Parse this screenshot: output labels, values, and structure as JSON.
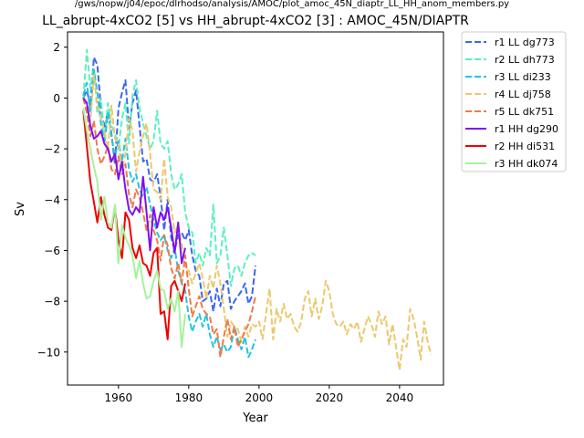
{
  "chart_data": {
    "type": "line",
    "suptitle": "/gws/nopw/j04/epoc/dlrhodso/analysis/AMOC/plot_amoc_45N_diaptr_LL_HH_anom_members.py",
    "title": "LL_abrupt-4xCO2 [5] vs HH_abrupt-4xCO2 [3] : AMOC_45N/DIAPTR",
    "xlabel": "Year",
    "ylabel": "Sv",
    "xlim": [
      1945.5,
      2052.5
    ],
    "ylim": [
      -11.3,
      2.6
    ],
    "xticks": [
      1960,
      1980,
      2000,
      2020,
      2040
    ],
    "yticks": [
      2,
      0,
      -2,
      -4,
      -6,
      -8,
      -10
    ],
    "grid": false,
    "legend_position": "outside-top-right",
    "series": [
      {
        "name": "r1 LL dg773",
        "color": "#3b67f0",
        "style": "dashed",
        "x": [
          1950,
          1951,
          1952,
          1953,
          1954,
          1955,
          1956,
          1957,
          1958,
          1959,
          1960,
          1961,
          1962,
          1963,
          1964,
          1965,
          1966,
          1967,
          1968,
          1969,
          1970,
          1971,
          1972,
          1973,
          1974,
          1975,
          1976,
          1977,
          1978,
          1979,
          1980,
          1981,
          1982,
          1983,
          1984,
          1985,
          1986,
          1987,
          1988,
          1989,
          1990,
          1991,
          1992,
          1993,
          1994,
          1995,
          1996,
          1997,
          1998,
          1999
        ],
        "y": [
          0.0,
          0.3,
          -0.3,
          1.6,
          1.3,
          -0.4,
          -1.2,
          -0.5,
          -1.4,
          -2.6,
          -0.4,
          0.2,
          0.7,
          -1.2,
          -0.2,
          0.3,
          -1.1,
          -2.5,
          -2.4,
          -3.2,
          -3.3,
          -3.0,
          -3.9,
          -5.2,
          -4.0,
          -5.5,
          -6.0,
          -5.4,
          -5.3,
          -5.6,
          -5.2,
          -6.2,
          -6.8,
          -7.0,
          -8.0,
          -7.9,
          -7.6,
          -8.4,
          -7.5,
          -8.2,
          -7.3,
          -7.2,
          -8.3,
          -8.0,
          -7.8,
          -7.6,
          -7.3,
          -8.1,
          -7.8,
          -6.6
        ]
      },
      {
        "name": "r2 LL dh773",
        "color": "#5cf0bf",
        "style": "dashed",
        "x": [
          1950,
          1951,
          1952,
          1953,
          1954,
          1955,
          1956,
          1957,
          1958,
          1959,
          1960,
          1961,
          1962,
          1963,
          1964,
          1965,
          1966,
          1967,
          1968,
          1969,
          1970,
          1971,
          1972,
          1973,
          1974,
          1975,
          1976,
          1977,
          1978,
          1979,
          1980,
          1981,
          1982,
          1983,
          1984,
          1985,
          1986,
          1987,
          1988,
          1989,
          1990,
          1991,
          1992,
          1993,
          1994,
          1995,
          1996,
          1997,
          1998,
          1999
        ],
        "y": [
          0.0,
          1.9,
          0.4,
          1.2,
          -0.6,
          0.0,
          -1.7,
          -0.2,
          -1.1,
          -1.4,
          -2.0,
          -0.8,
          -0.2,
          -1.8,
          0.1,
          0.7,
          -0.4,
          -1.0,
          -1.5,
          -2.0,
          -1.7,
          -0.5,
          -1.8,
          -2.0,
          -1.7,
          -3.0,
          -3.6,
          -3.4,
          -3.0,
          -4.5,
          -5.1,
          -5.3,
          -6.5,
          -6.1,
          -6.6,
          -5.9,
          -6.2,
          -4.2,
          -6.5,
          -6.2,
          -5.1,
          -6.2,
          -7.4,
          -6.7,
          -6.6,
          -7.0,
          -6.5,
          -6.2,
          -6.1,
          -6.2
        ]
      },
      {
        "name": "r3 LL di233",
        "color": "#22c5e0",
        "style": "dashed",
        "x": [
          1950,
          1951,
          1952,
          1953,
          1954,
          1955,
          1956,
          1957,
          1958,
          1959,
          1960,
          1961,
          1962,
          1963,
          1964,
          1965,
          1966,
          1967,
          1968,
          1969,
          1970,
          1971,
          1972,
          1973,
          1974,
          1975,
          1976,
          1977,
          1978,
          1979,
          1980,
          1981,
          1982,
          1983,
          1984,
          1985,
          1986,
          1987,
          1988,
          1989,
          1990,
          1991,
          1992,
          1993,
          1994,
          1995,
          1996,
          1997,
          1998,
          1999
        ],
        "y": [
          0.1,
          0.6,
          -0.6,
          1.1,
          0.2,
          -1.0,
          -1.8,
          -0.6,
          -1.5,
          -2.3,
          -1.7,
          -2.5,
          -1.6,
          -2.8,
          -3.3,
          -3.0,
          -3.6,
          -3.9,
          -3.5,
          -4.2,
          -4.8,
          -5.3,
          -5.6,
          -5.4,
          -6.0,
          -6.3,
          -5.9,
          -6.8,
          -7.3,
          -7.6,
          -8.6,
          -9.2,
          -8.8,
          -8.5,
          -9.0,
          -8.5,
          -9.3,
          -9.8,
          -9.4,
          -9.9,
          -9.7,
          -10.0,
          -9.8,
          -9.0,
          -9.5,
          -9.9,
          -9.4,
          -10.2,
          -9.9,
          -9.5
        ]
      },
      {
        "name": "r4 LL dj758",
        "color": "#ecc86e",
        "style": "dashed",
        "x": [
          1950,
          1951,
          1952,
          1953,
          1954,
          1955,
          1956,
          1957,
          1958,
          1959,
          1960,
          1961,
          1962,
          1963,
          1964,
          1965,
          1966,
          1967,
          1968,
          1969,
          1970,
          1971,
          1972,
          1973,
          1974,
          1975,
          1976,
          1977,
          1978,
          1979,
          1980,
          1981,
          1982,
          1983,
          1984,
          1985,
          1986,
          1987,
          1988,
          1989,
          1990,
          1991,
          1992,
          1993,
          1994,
          1995,
          1996,
          1997,
          1998,
          1999,
          2000,
          2001,
          2002,
          2003,
          2004,
          2005,
          2006,
          2007,
          2008,
          2009,
          2010,
          2011,
          2012,
          2013,
          2014,
          2015,
          2016,
          2017,
          2018,
          2019,
          2020,
          2021,
          2022,
          2023,
          2024,
          2025,
          2026,
          2027,
          2028,
          2029,
          2030,
          2031,
          2032,
          2033,
          2034,
          2035,
          2036,
          2037,
          2038,
          2039,
          2040,
          2041,
          2042,
          2043,
          2044,
          2045,
          2046,
          2047,
          2048,
          2049
        ],
        "y": [
          0.0,
          -0.4,
          -0.9,
          0.9,
          -0.3,
          -0.8,
          -1.3,
          -2.0,
          -0.3,
          -1.6,
          -1.8,
          -2.8,
          -2.2,
          -0.8,
          -1.3,
          -2.9,
          -2.1,
          -1.5,
          -1.0,
          -2.2,
          -3.6,
          -3.7,
          -4.0,
          -2.4,
          -3.9,
          -4.3,
          -5.3,
          -5.0,
          -5.7,
          -6.6,
          -6.8,
          -7.3,
          -6.9,
          -6.5,
          -7.1,
          -7.9,
          -7.0,
          -7.5,
          -6.6,
          -7.3,
          -8.3,
          -9.4,
          -8.8,
          -9.0,
          -9.1,
          -9.6,
          -9.0,
          -9.4,
          -8.9,
          -9.0,
          -8.8,
          -9.5,
          -8.5,
          -7.5,
          -9.5,
          -8.3,
          -8.8,
          -8.1,
          -8.7,
          -8.5,
          -9.0,
          -9.2,
          -8.8,
          -7.9,
          -7.6,
          -8.6,
          -7.9,
          -8.7,
          -8.2,
          -7.2,
          -7.6,
          -8.5,
          -8.9,
          -9.0,
          -8.8,
          -9.3,
          -8.9,
          -9.1,
          -8.8,
          -9.6,
          -9.1,
          -8.6,
          -8.9,
          -9.4,
          -8.4,
          -8.9,
          -8.6,
          -9.7,
          -8.9,
          -9.8,
          -10.7,
          -9.5,
          -9.8,
          -8.3,
          -8.7,
          -9.4,
          -10.3,
          -8.8,
          -9.6,
          -10.1
        ]
      },
      {
        "name": "r5 LL dk751",
        "color": "#f07a45",
        "style": "dashed",
        "x": [
          1950,
          1951,
          1952,
          1953,
          1954,
          1955,
          1956,
          1957,
          1958,
          1959,
          1960,
          1961,
          1962,
          1963,
          1964,
          1965,
          1966,
          1967,
          1968,
          1969,
          1970,
          1971,
          1972,
          1973,
          1974,
          1975,
          1976,
          1977,
          1978,
          1979,
          1980,
          1981,
          1982,
          1983,
          1984,
          1985,
          1986,
          1987,
          1988,
          1989,
          1990,
          1991,
          1992,
          1993,
          1994,
          1995,
          1996,
          1997,
          1998,
          1999
        ],
        "y": [
          0.0,
          -0.6,
          -1.5,
          -0.9,
          -2.0,
          -2.6,
          -2.3,
          -1.9,
          -2.8,
          -3.0,
          -2.3,
          -3.0,
          -2.6,
          -3.8,
          -4.3,
          -3.6,
          -3.9,
          -4.5,
          -5.2,
          -4.6,
          -5.2,
          -5.6,
          -6.4,
          -5.4,
          -5.8,
          -6.7,
          -7.1,
          -6.5,
          -7.3,
          -6.2,
          -7.5,
          -8.6,
          -8.2,
          -7.8,
          -8.3,
          -8.5,
          -8.6,
          -9.3,
          -9.1,
          -10.2,
          -9.4,
          -8.7,
          -9.5,
          -9.0,
          -9.8,
          -9.5,
          -9.2,
          -8.9,
          -8.4,
          -7.8
        ]
      },
      {
        "name": "r1 HH dg290",
        "color": "#7f10f0",
        "style": "solid",
        "x": [
          1950,
          1951,
          1952,
          1953,
          1954,
          1955,
          1956,
          1957,
          1958,
          1959,
          1960,
          1961,
          1962,
          1963,
          1964,
          1965,
          1966,
          1967,
          1968,
          1969,
          1970,
          1971,
          1972,
          1973,
          1974,
          1975,
          1976,
          1977,
          1978,
          1979
        ],
        "y": [
          0.0,
          -0.2,
          -1.1,
          -1.6,
          -1.5,
          -1.3,
          -1.8,
          -2.0,
          -2.5,
          -2.2,
          -3.2,
          -2.5,
          -3.6,
          -4.4,
          -4.6,
          -4.3,
          -4.5,
          -3.1,
          -4.5,
          -6.0,
          -4.3,
          -5.1,
          -4.5,
          -4.8,
          -4.3,
          -5.1,
          -6.1,
          -4.9,
          -6.5,
          -5.9
        ]
      },
      {
        "name": "r2 HH di531",
        "color": "#f00000",
        "style": "solid",
        "x": [
          1950,
          1951,
          1952,
          1953,
          1954,
          1955,
          1956,
          1957,
          1958,
          1959,
          1960,
          1961,
          1962,
          1963,
          1964,
          1965,
          1966,
          1967,
          1968,
          1969,
          1970,
          1971,
          1972,
          1973,
          1974,
          1975,
          1976,
          1977,
          1978,
          1979
        ],
        "y": [
          -0.5,
          -1.9,
          -3.3,
          -4.1,
          -4.9,
          -3.9,
          -4.6,
          -5.1,
          -5.2,
          -4.3,
          -5.6,
          -6.3,
          -4.5,
          -4.8,
          -5.9,
          -6.3,
          -5.8,
          -6.5,
          -6.6,
          -7.0,
          -6.1,
          -5.9,
          -8.5,
          -8.4,
          -9.5,
          -7.4,
          -7.2,
          -7.6,
          -8.0,
          -7.3
        ]
      },
      {
        "name": "r3 HH dk074",
        "color": "#a4f49a",
        "style": "solid",
        "x": [
          1950,
          1951,
          1952,
          1953,
          1954,
          1955,
          1956,
          1957,
          1958,
          1959,
          1960,
          1961,
          1962,
          1963,
          1964,
          1965,
          1966,
          1967,
          1968,
          1969,
          1970,
          1971,
          1972,
          1973,
          1974,
          1975,
          1976,
          1977,
          1978,
          1979
        ],
        "y": [
          -0.4,
          -1.3,
          -2.0,
          -2.7,
          -3.3,
          -4.8,
          -3.9,
          -4.9,
          -5.1,
          -4.2,
          -6.5,
          -5.0,
          -5.5,
          -5.8,
          -6.2,
          -7.1,
          -6.4,
          -7.3,
          -7.9,
          -7.8,
          -7.2,
          -6.8,
          -7.5,
          -7.6,
          -8.3,
          -7.9,
          -8.4,
          -7.6,
          -9.8,
          -8.5
        ]
      }
    ]
  }
}
